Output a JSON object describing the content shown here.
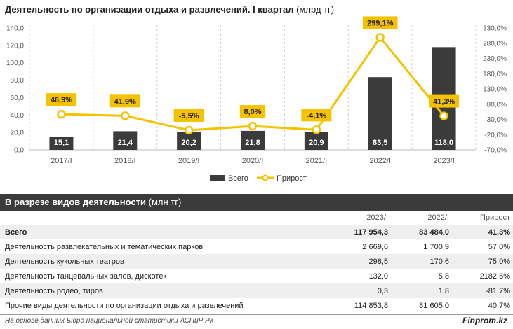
{
  "title": {
    "main": "Деятельность по организации отдыха и развлечений. I квартал",
    "unit": " (млрд тг)"
  },
  "chart_data": {
    "type": "bar",
    "categories": [
      "2017/I",
      "2018/I",
      "2019/I",
      "2020/I",
      "2021/I",
      "2022/I",
      "2023/I"
    ],
    "series": [
      {
        "name": "Всего",
        "type": "bar",
        "axis": "left",
        "color": "#3b3b3b",
        "values": [
          15.1,
          21.4,
          20.2,
          21.8,
          20.9,
          83.5,
          118.0
        ],
        "labels": [
          "15,1",
          "21,4",
          "20,2",
          "21,8",
          "20,9",
          "83,5",
          "118,0"
        ]
      },
      {
        "name": "Прирост",
        "type": "line",
        "axis": "right",
        "color": "#f5c200",
        "values": [
          46.9,
          41.9,
          -5.5,
          8.0,
          -4.1,
          299.1,
          41.3
        ],
        "labels": [
          "46,9%",
          "41,9%",
          "-5,5%",
          "8,0%",
          "-4,1%",
          "299,1%",
          "41,3%"
        ]
      }
    ],
    "left_axis": {
      "range": [
        0,
        140
      ],
      "ticks": [
        "0,0",
        "20,0",
        "40,0",
        "60,0",
        "80,0",
        "100,0",
        "120,0",
        "140,0"
      ]
    },
    "right_axis": {
      "range": [
        -70,
        330
      ],
      "ticks": [
        "-70,0%",
        "-20,0%",
        "30,0%",
        "80,0%",
        "130,0%",
        "180,0%",
        "230,0%",
        "280,0%",
        "330,0%"
      ]
    },
    "grid": "vertical-dashed",
    "legend_position": "bottom-center"
  },
  "table": {
    "title_bold": "В разрезе видов деятельности",
    "title_unit": " (млн тг)",
    "columns": [
      "",
      "2023/I",
      "2022/I",
      "Прирост"
    ],
    "rows": [
      [
        "Всего",
        "117 954,3",
        "83 484,0",
        "41,3%"
      ],
      [
        "Деятельность развлекательных и тематических парков",
        "2 669,6",
        "1 700,9",
        "57,0%"
      ],
      [
        "Деятельность кукольных театров",
        "298,5",
        "170,6",
        "75,0%"
      ],
      [
        "Деятельность танцевальных залов, дискотек",
        "132,0",
        "5,8",
        "2182,6%"
      ],
      [
        "Деятельность родео, тиров",
        "0,3",
        "1,8",
        "-81,7%"
      ],
      [
        "Прочие виды деятельности по организации отдыха и развлечений",
        "114 853,8",
        "81 605,0",
        "40,7%"
      ]
    ]
  },
  "footer": {
    "source": "На основе данных Бюро национальной статистики АСПиР РК",
    "brand": "Finprom.kz"
  }
}
